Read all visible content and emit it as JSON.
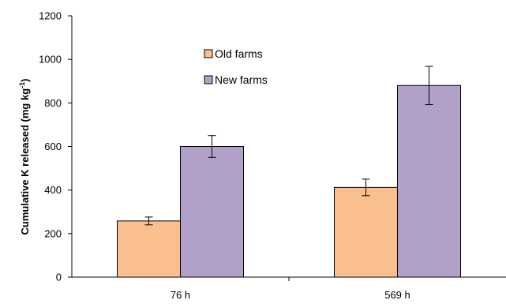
{
  "chart_data": {
    "type": "bar",
    "categories": [
      "76 h",
      "569 h"
    ],
    "series": [
      {
        "name": "Old farms",
        "values": [
          258,
          412
        ],
        "errors": [
          18,
          38
        ],
        "color": "#f9bf8f"
      },
      {
        "name": "New farms",
        "values": [
          600,
          880
        ],
        "errors": [
          50,
          88
        ],
        "color": "#b1a0c7"
      }
    ],
    "title": "",
    "xlabel": "",
    "ylabel_main": "Cumulative K released (mg kg",
    "ylabel_sup": "-1",
    "ylabel_end": ")",
    "ylim": [
      0,
      1200
    ],
    "yticks": [
      0,
      200,
      400,
      600,
      800,
      1000,
      1200
    ],
    "grid": false,
    "legend_position": "top-center"
  }
}
